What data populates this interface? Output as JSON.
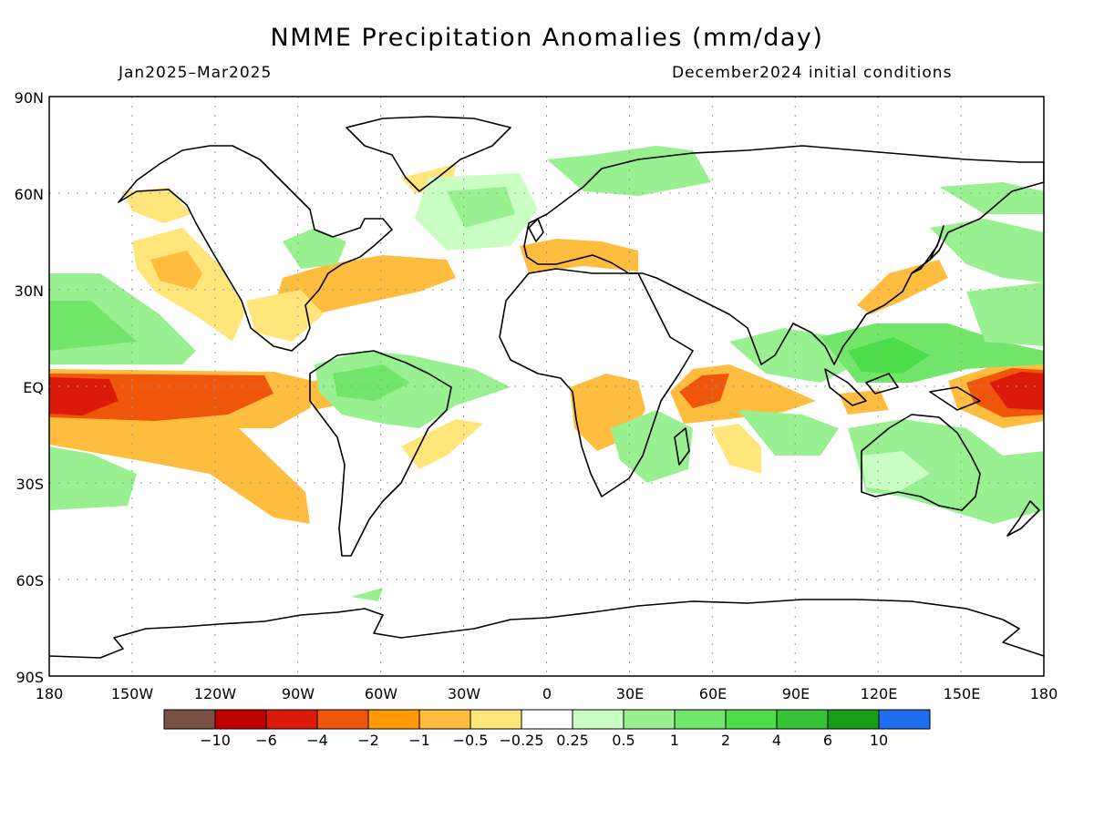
{
  "title": "NMME Precipitation Anomalies (mm/day)",
  "period": "Jan2025–Mar2025",
  "initial_conditions": "December2024 initial conditions",
  "lat_labels": [
    "90N",
    "60N",
    "30N",
    "EQ",
    "30S",
    "60S",
    "90S"
  ],
  "lon_labels": [
    "180",
    "150W",
    "120W",
    "90W",
    "60W",
    "30W",
    "0",
    "30E",
    "60E",
    "90E",
    "120E",
    "150E",
    "180"
  ],
  "colorbar": {
    "colors": [
      "#7a4f44",
      "#c00000",
      "#dc1a0a",
      "#f0560a",
      "#ff9b00",
      "#ffbd40",
      "#ffe57a",
      "#ffffff",
      "#c9ffc2",
      "#98f090",
      "#72e66a",
      "#4ddc4a",
      "#36c236",
      "#169e16",
      "#1e6ef0"
    ],
    "labels": [
      "−10",
      "−6",
      "−4",
      "−2",
      "−1",
      "−0.5",
      "−0.25",
      "0.25",
      "0.5",
      "1",
      "2",
      "4",
      "6",
      "10"
    ]
  },
  "colors": {
    "dry_strong": "#dc1a0a",
    "dry_moderate": "#f0560a",
    "dry": "#ffbd40",
    "dry_weak": "#ffe57a",
    "wet_weak": "#c9ffc2",
    "wet": "#98f090",
    "wet_moderate": "#72e66a",
    "wet_strong": "#4ddc4a"
  }
}
